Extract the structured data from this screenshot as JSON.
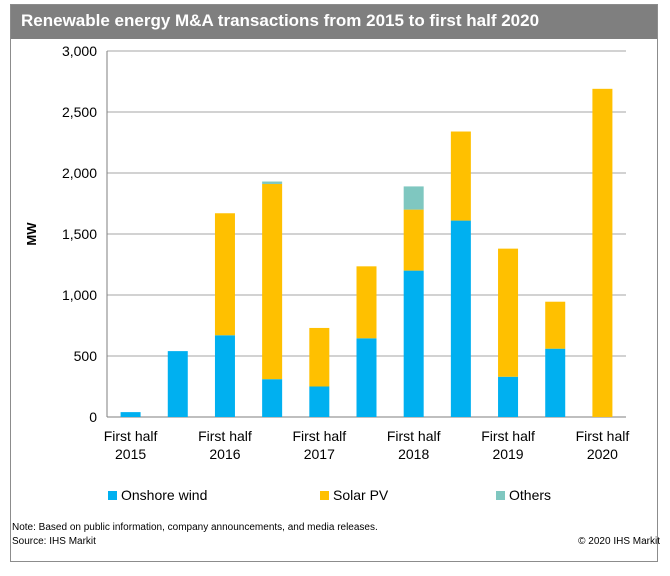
{
  "chart_data": {
    "type": "bar",
    "stacked": true,
    "title": "Renewable energy M&A transactions from 2015 to first half 2020",
    "ylabel": "MW",
    "ylim": [
      0,
      3000
    ],
    "yticks": [
      "0",
      "500",
      "1,000",
      "1,500",
      "2,000",
      "2,500",
      "3,000"
    ],
    "ytick_values": [
      0,
      500,
      1000,
      1500,
      2000,
      2500,
      3000
    ],
    "grid": true,
    "x_labels": [
      {
        "line1": "First half",
        "line2": "2015",
        "index": 0
      },
      {
        "line1": "First half",
        "line2": "2016",
        "index": 2
      },
      {
        "line1": "First half",
        "line2": "2017",
        "index": 4
      },
      {
        "line1": "First half",
        "line2": "2018",
        "index": 6
      },
      {
        "line1": "First half",
        "line2": "2019",
        "index": 8
      },
      {
        "line1": "First half",
        "line2": "2020",
        "index": 10
      }
    ],
    "num_bars": 11,
    "series": [
      {
        "name": "Onshore wind",
        "color": "#00b0f0",
        "values": [
          40,
          540,
          670,
          310,
          250,
          645,
          1200,
          1610,
          330,
          560,
          0
        ]
      },
      {
        "name": "Solar PV",
        "color": "#ffc000",
        "values": [
          0,
          0,
          1000,
          1600,
          480,
          590,
          500,
          730,
          1050,
          385,
          2690
        ]
      },
      {
        "name": "Others",
        "color": "#7fc7c0",
        "values": [
          0,
          0,
          0,
          20,
          0,
          0,
          190,
          0,
          0,
          0,
          0
        ]
      }
    ],
    "legend": "bottom"
  },
  "footer": {
    "note": "Note: Based on public information, company announcements, and media releases.",
    "source": "Source: IHS Markit",
    "copyright": "© 2020 IHS Markit"
  }
}
